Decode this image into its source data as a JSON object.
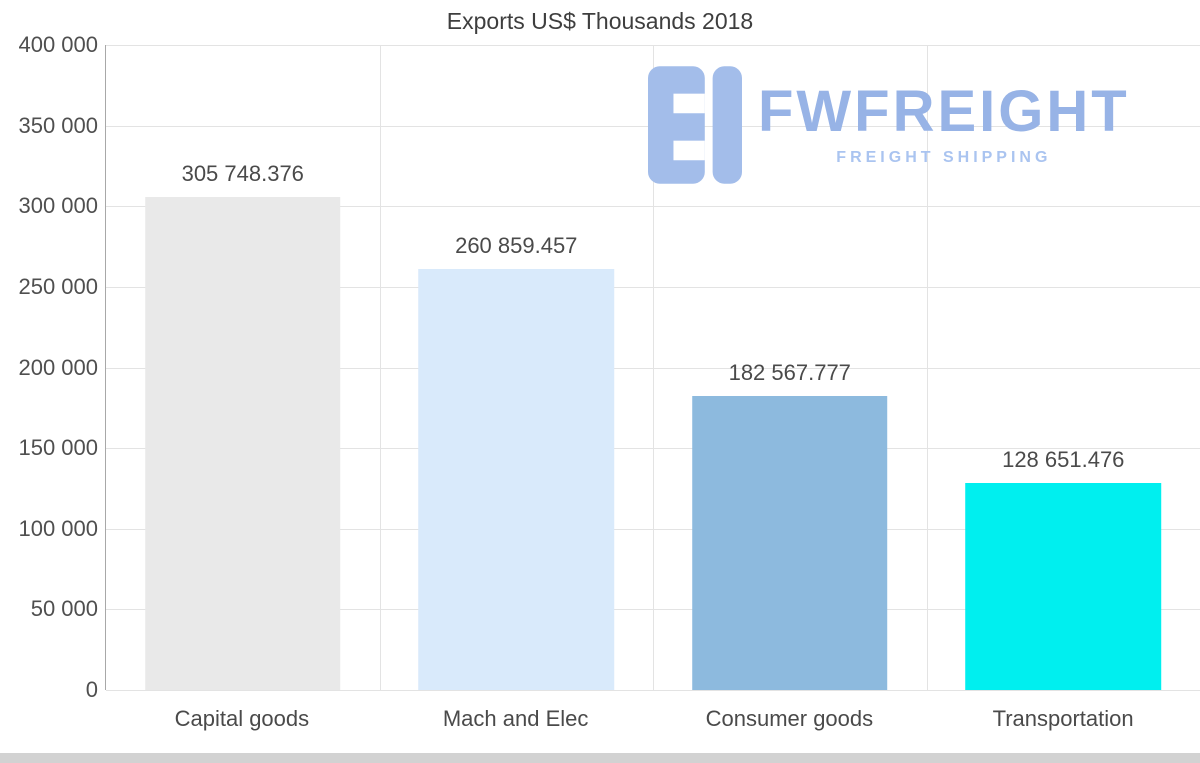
{
  "chart_data": {
    "type": "bar",
    "title": "Exports US$ Thousands 2018",
    "categories": [
      "Capital goods",
      "Mach and Elec",
      "Consumer goods",
      "Transportation"
    ],
    "values": [
      305748.376,
      260859.457,
      182567.777,
      128651.476
    ],
    "value_labels": [
      "305 748.376",
      "260 859.457",
      "182 567.777",
      "128 651.476"
    ],
    "bar_colors": [
      "#e9e9e9",
      "#d9eafb",
      "#8dbade",
      "#00efef"
    ],
    "xlabel": "",
    "ylabel": "",
    "ylim": [
      0,
      400000
    ],
    "ytick_values": [
      400000,
      350000,
      300000,
      250000,
      200000,
      150000,
      100000,
      50000,
      0
    ],
    "ytick_labels": [
      "400 000",
      "350 000",
      "300 000",
      "250 000",
      "200 000",
      "150 000",
      "100 000",
      "50 000",
      "0"
    ],
    "grid": true,
    "legend": false
  },
  "watermark": {
    "brand": "FWFREIGHT",
    "tagline": "FREIGHT SHIPPING",
    "color": "#a3bdea"
  }
}
